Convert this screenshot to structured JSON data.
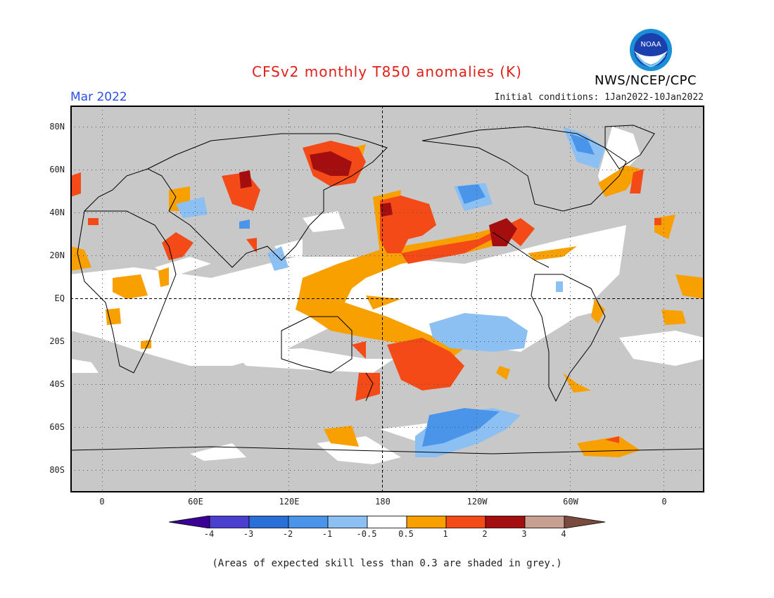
{
  "title": "CFSv2 monthly T850 anomalies (K)",
  "period": "Mar 2022",
  "initial_conditions": "Initial conditions: 1Jan2022-10Jan2022",
  "agency": "NWS/NCEP/CPC",
  "logo_text": "NOAA",
  "footnote": "(Areas of expected skill less than 0.3 are shaded in grey.)",
  "colors": {
    "title": "#e0201a",
    "period": "#2b50e8",
    "skill_grey": "#c8c8c8",
    "neutral": "#ffffff"
  },
  "y_axis": {
    "labels": [
      "80N",
      "60N",
      "40N",
      "20N",
      "EQ",
      "20S",
      "40S",
      "60S",
      "80S"
    ]
  },
  "x_axis": {
    "labels": [
      "0",
      "60E",
      "120E",
      "180",
      "120W",
      "60W",
      "0"
    ]
  },
  "legend": {
    "levels": [
      "-4",
      "-3",
      "-2",
      "-1",
      "-0.5",
      "0.5",
      "1",
      "2",
      "3",
      "4"
    ],
    "colors": [
      "#3a0096",
      "#4b3fd0",
      "#2a6fd8",
      "#4a95ea",
      "#8cc0f3",
      "#ffffff",
      "#f8a000",
      "#f34a18",
      "#a50e0e",
      "#c8a092",
      "#7a4a3e"
    ]
  }
}
